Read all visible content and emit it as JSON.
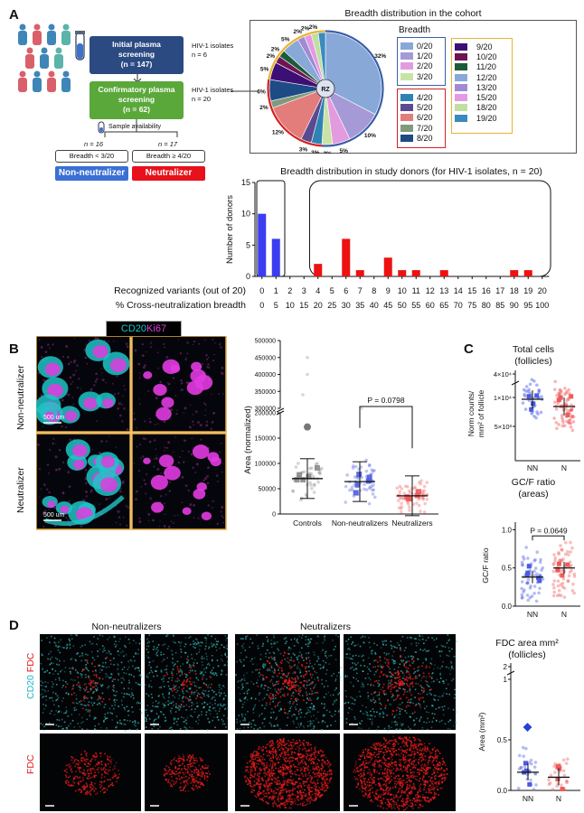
{
  "panel_labels": {
    "A": "A",
    "B": "B",
    "C": "C",
    "D": "D"
  },
  "flow": {
    "box1_line1": "Initial plasma",
    "box1_line2": "screening",
    "box1_line3": "(n = 147)",
    "box1_side_1": "HIV-1 isolates",
    "box1_side_2": "n = 6",
    "box2_line1": "Confirmatory plasma",
    "box2_line2": "screening",
    "box2_line3": "(n = 62)",
    "box2_side_1": "HIV-1 isolates",
    "box2_side_2": "n = 20",
    "sample": "Sample availability",
    "n_left": "n = 16",
    "n_right": "n = 17",
    "breadth_left": "Breadth < 3/20",
    "breadth_right": "Breadth ≥ 4/20",
    "tag_left": "Non-neutralizer",
    "tag_right": "Neutralizer",
    "color_left": "#3b6fd4",
    "color_right": "#e8101a"
  },
  "pie": {
    "title": "Breadth distribution in the cohort",
    "center": "RZ",
    "legend_title": "Breadth",
    "slice_labels": [
      "32%",
      "10%",
      "5%",
      "3%",
      "3%",
      "3%",
      "12%",
      "2%",
      "6%",
      "5%",
      "2%",
      "2%",
      "5%",
      "2%",
      "2%",
      "2%"
    ]
  },
  "legend": {
    "blue_group": [
      {
        "label": "0/20",
        "color": "#88a8d8"
      },
      {
        "label": "1/20",
        "color": "#a59ad6"
      },
      {
        "label": "2/20",
        "color": "#e39be0"
      },
      {
        "label": "3/20",
        "color": "#c9e3a6"
      }
    ],
    "red_group": [
      {
        "label": "4/20",
        "color": "#2f83b4"
      },
      {
        "label": "5/20",
        "color": "#5a4a91"
      },
      {
        "label": "6/20",
        "color": "#e27d7b"
      },
      {
        "label": "7/20",
        "color": "#7f9a7d"
      },
      {
        "label": "8/20",
        "color": "#1e4a86"
      }
    ],
    "yellow_group": [
      {
        "label": "9/20",
        "color": "#3d0f75"
      },
      {
        "label": "10/20",
        "color": "#6e1452"
      },
      {
        "label": "11/20",
        "color": "#1c5b3a"
      },
      {
        "label": "12/20",
        "color": "#88a8d8"
      },
      {
        "label": "13/20",
        "color": "#a08ad4"
      },
      {
        "label": "15/20",
        "color": "#e49ae3"
      },
      {
        "label": "18/20",
        "color": "#bfe0a2"
      },
      {
        "label": "19/20",
        "color": "#3a8bbd"
      }
    ]
  },
  "chart_data": [
    {
      "type": "bar",
      "title": "Breadth distribution in study donors (for HIV-1 isolates, n = 20)",
      "ylabel": "Number of donors",
      "xlabel_1": "Recognized variants (out of 20)",
      "xlabel_2": "% Cross-neutralization breadth",
      "categories": [
        "0",
        "1",
        "2",
        "3",
        "4",
        "5",
        "6",
        "7",
        "8",
        "9",
        "10",
        "11",
        "12",
        "13",
        "14",
        "15",
        "16",
        "17",
        "18",
        "19",
        "20"
      ],
      "percent_ticks": [
        "0",
        "5",
        "10",
        "15",
        "20",
        "25",
        "30",
        "35",
        "40",
        "45",
        "50",
        "55",
        "60",
        "65",
        "70",
        "75",
        "80",
        "85",
        "90",
        "95",
        "100"
      ],
      "values": [
        10,
        6,
        0,
        0,
        2,
        0,
        6,
        1,
        0,
        3,
        1,
        1,
        0,
        1,
        0,
        0,
        0,
        0,
        1,
        1,
        0
      ],
      "colors_by_group": {
        "non": "#3a3df0",
        "neut": "#ee1111"
      },
      "ylim": [
        0,
        15
      ],
      "yticks": [
        "0",
        "5",
        "10",
        "15"
      ]
    },
    {
      "type": "scatter",
      "ylabel": "Area (normalized)",
      "categories": [
        "Controls",
        "Non-neutralizers",
        "Neutralizers"
      ],
      "pvalue": "P = 0.0798",
      "yticks_low": [
        "0",
        "50000",
        "100000",
        "150000",
        "200000"
      ],
      "yticks_high": [
        "300000",
        "350000",
        "400000",
        "450000",
        "500000"
      ],
      "means": [
        70000,
        64000,
        36000
      ]
    },
    {
      "type": "scatter",
      "title_1": "Total cells",
      "title_2": "(follicles)",
      "ylabel_1": "Norm counts/",
      "ylabel_2": "mm² of follicle",
      "categories": [
        "NN",
        "N"
      ],
      "yticks": [
        "5×10³",
        "1×10⁴",
        "4×10⁴"
      ]
    },
    {
      "type": "scatter",
      "title": "GC/F ratio (areas)",
      "ylabel": "GC/F ratio",
      "categories": [
        "NN",
        "N"
      ],
      "pvalue": "P = 0.0649",
      "yticks": [
        "0.0",
        "0.5",
        "1.0"
      ]
    },
    {
      "type": "scatter",
      "title_1": "FDC area mm²",
      "title_2": "(follicles)",
      "ylabel": "Area (mm²)",
      "categories": [
        "NN",
        "N"
      ],
      "yticks": [
        "0.0",
        "0.5",
        "1",
        "2"
      ]
    }
  ],
  "microscopy_B": {
    "legend_cd20": "CD20",
    "legend_ki67": "Ki67",
    "row1": "Non-neutralizer",
    "row2": "Neutralizer",
    "scale": "500 um"
  },
  "microscopy_D": {
    "col1": "Non-neutralizers",
    "col2": "Neutralizers",
    "row1_a": "CD20",
    "row1_b": "FDC",
    "row2": "FDC"
  },
  "colors": {
    "cyan": "#19c6c8",
    "magenta": "#e23be0",
    "red": "#e01818",
    "blue": "#2a3fd6",
    "frame": "#e6a93a"
  }
}
